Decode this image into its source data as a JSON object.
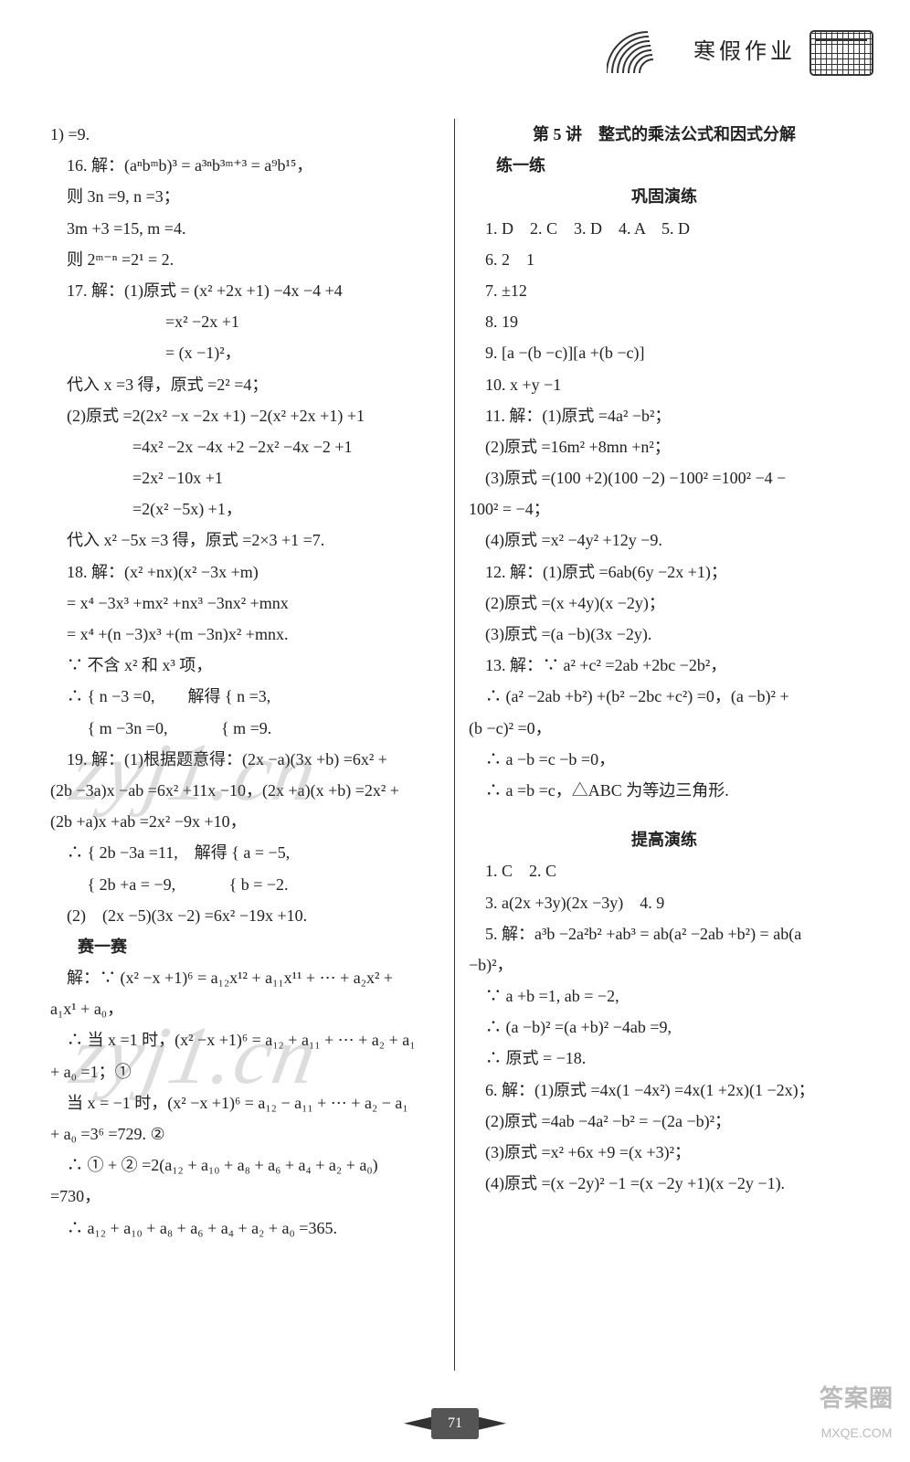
{
  "header": {
    "title": "寒假作业"
  },
  "footer": {
    "page_number": "71"
  },
  "corner": {
    "line1": "答案圈",
    "line2": "MXQE.COM"
  },
  "watermark": {
    "text": "zyj1.cn"
  },
  "left_column": {
    "lines": [
      "1) =9.",
      "　16. 解：(aⁿbᵐb)³ = a³ⁿb³ᵐ⁺³ = a⁹b¹⁵，",
      "　则 3n =9, n =3；",
      "　3m +3 =15, m =4.",
      "　则 2ᵐ⁻ⁿ =2¹ = 2.",
      "　17. 解：(1)原式 = (x² +2x +1) −4x −4 +4",
      "　　　　　　　=x² −2x +1",
      "　　　　　　　= (x −1)²，",
      "　代入 x =3 得，原式 =2² =4；",
      "　(2)原式 =2(2x² −x −2x +1) −2(x² +2x +1) +1",
      "　　　　　=4x² −2x −4x +2 −2x² −4x −2 +1",
      "　　　　　=2x² −10x +1",
      "　　　　　=2(x² −5x) +1，",
      "　代入 x² −5x =3 得，原式 =2×3 +1 =7.",
      "　18. 解：(x² +nx)(x² −3x +m)",
      "　= x⁴ −3x³ +mx² +nx³ −3nx² +mnx",
      "　= x⁴ +(n −3)x³ +(m −3n)x² +mnx.",
      "　∵ 不含 x² 和 x³ 项，",
      "　∴ { n −3 =0,　　解得 { n =3,",
      "　　 { m −3n =0,　　　 { m =9.",
      "　19. 解：(1)根据题意得：(2x −a)(3x +b) =6x² +",
      "(2b −3a)x −ab =6x² +11x −10，(2x +a)(x +b) =2x² +",
      "(2b +a)x +ab =2x² −9x +10，",
      "　∴ { 2b −3a =11,　解得 { a = −5,",
      "　　 { 2b +a = −9,　　　 { b = −2.",
      "　(2)　(2x −5)(3x −2) =6x² −19x +10."
    ],
    "sai_title": "赛一赛",
    "sai_lines": [
      "　解：∵ (x² −x +1)⁶ = a₁₂x¹² + a₁₁x¹¹ + ⋯ + a₂x² +",
      "a₁x¹ + a₀，",
      "　∴ 当 x =1 时，(x² −x +1)⁶ = a₁₂ + a₁₁ + ⋯ + a₂ + a₁",
      "+ a₀ =1；①",
      "　当 x = −1 时，(x² −x +1)⁶ = a₁₂ − a₁₁ + ⋯ + a₂ − a₁",
      "+ a₀ =3⁶ =729. ②",
      "　∴ ① + ② =2(a₁₂ + a₁₀ + a₈ + a₆ + a₄ + a₂ + a₀)",
      "=730，",
      "　∴ a₁₂ + a₁₀ + a₈ + a₆ + a₄ + a₂ + a₀ =365."
    ]
  },
  "right_column": {
    "section_title": "第 5 讲　整式的乘法公式和因式分解",
    "lian_title": "练一练",
    "gonggu_title": "巩固演练",
    "gonggu_lines": [
      "　1. D　2. C　3. D　4. A　5. D",
      "　6. 2　1",
      "　7. ±12",
      "　8. 19",
      "　9. [a −(b −c)][a +(b −c)]",
      "　10. x +y −1",
      "　11. 解：(1)原式 =4a² −b²；",
      "　(2)原式 =16m² +8mn +n²；",
      "　(3)原式 =(100 +2)(100 −2) −100² =100² −4 −",
      "100² = −4；",
      "　(4)原式 =x² −4y² +12y −9.",
      "　12. 解：(1)原式 =6ab(6y −2x +1)；",
      "　(2)原式 =(x +4y)(x −2y)；",
      "　(3)原式 =(a −b)(3x −2y).",
      "　13. 解：∵ a² +c² =2ab +2bc −2b²，",
      "　∴ (a² −2ab +b²) +(b² −2bc +c²) =0，(a −b)² +",
      "(b −c)² =0，",
      "　∴ a −b =c −b =0，",
      "　∴ a =b =c，△ABC 为等边三角形."
    ],
    "tigao_title": "提高演练",
    "tigao_lines": [
      "　1. C　2. C",
      "　3. a(2x +3y)(2x −3y)　4. 9",
      "　5. 解：a³b −2a²b² +ab³ = ab(a² −2ab +b²) = ab(a",
      "−b)²，",
      "　∵ a +b =1, ab = −2,",
      "　∴ (a −b)² =(a +b)² −4ab =9,",
      "　∴ 原式 = −18.",
      "　6. 解：(1)原式 =4x(1 −4x²) =4x(1 +2x)(1 −2x)；",
      "　(2)原式 =4ab −4a² −b² = −(2a −b)²；",
      "　(3)原式 =x² +6x +9 =(x +3)²；",
      "　(4)原式 =(x −2y)² −1 =(x −2y +1)(x −2y −1)."
    ]
  }
}
